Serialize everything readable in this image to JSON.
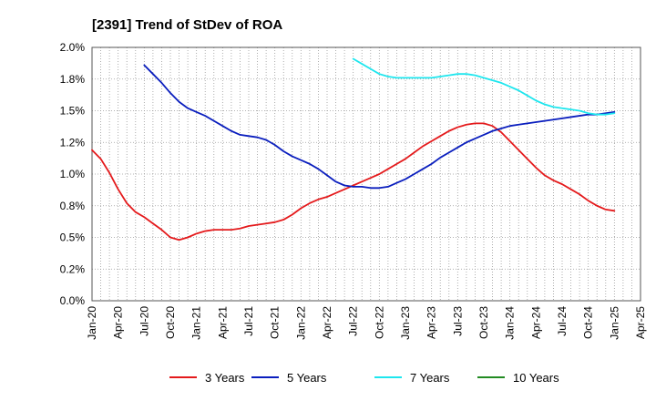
{
  "chart_data": {
    "type": "line",
    "title": "[2391]  Trend of StDev of ROA",
    "xlabel": "",
    "ylabel": "",
    "ylim": [
      0.0,
      2.0
    ],
    "y_ticks": [
      "0.0%",
      "0.2%",
      "0.5%",
      "0.8%",
      "1.0%",
      "1.2%",
      "1.5%",
      "1.8%",
      "2.0%"
    ],
    "x_ticks": [
      "Jan-20",
      "Apr-20",
      "Jul-20",
      "Oct-20",
      "Jan-21",
      "Apr-21",
      "Jul-21",
      "Oct-21",
      "Jan-22",
      "Apr-22",
      "Jul-22",
      "Oct-22",
      "Jan-23",
      "Apr-23",
      "Jul-23",
      "Oct-23",
      "Jan-24",
      "Apr-24",
      "Jul-24",
      "Oct-24",
      "Jan-25",
      "Apr-25"
    ],
    "grid": true,
    "legend_position": "bottom",
    "series": [
      {
        "name": "3 Years",
        "color": "#e41a1c",
        "points": [
          [
            "Jan-20",
            1.19
          ],
          [
            "Feb-20",
            1.12
          ],
          [
            "Mar-20",
            1.01
          ],
          [
            "Apr-20",
            0.88
          ],
          [
            "May-20",
            0.77
          ],
          [
            "Jun-20",
            0.7
          ],
          [
            "Jul-20",
            0.66
          ],
          [
            "Aug-20",
            0.61
          ],
          [
            "Sep-20",
            0.56
          ],
          [
            "Oct-20",
            0.5
          ],
          [
            "Nov-20",
            0.48
          ],
          [
            "Dec-20",
            0.5
          ],
          [
            "Jan-21",
            0.53
          ],
          [
            "Feb-21",
            0.55
          ],
          [
            "Mar-21",
            0.56
          ],
          [
            "Apr-21",
            0.56
          ],
          [
            "May-21",
            0.56
          ],
          [
            "Jun-21",
            0.57
          ],
          [
            "Jul-21",
            0.59
          ],
          [
            "Aug-21",
            0.6
          ],
          [
            "Sep-21",
            0.61
          ],
          [
            "Oct-21",
            0.62
          ],
          [
            "Nov-21",
            0.64
          ],
          [
            "Dec-21",
            0.68
          ],
          [
            "Jan-22",
            0.73
          ],
          [
            "Feb-22",
            0.77
          ],
          [
            "Mar-22",
            0.8
          ],
          [
            "Apr-22",
            0.82
          ],
          [
            "May-22",
            0.85
          ],
          [
            "Jun-22",
            0.88
          ],
          [
            "Jul-22",
            0.91
          ],
          [
            "Aug-22",
            0.94
          ],
          [
            "Sep-22",
            0.97
          ],
          [
            "Oct-22",
            1.0
          ],
          [
            "Nov-22",
            1.04
          ],
          [
            "Dec-22",
            1.08
          ],
          [
            "Jan-23",
            1.12
          ],
          [
            "Feb-23",
            1.17
          ],
          [
            "Mar-23",
            1.22
          ],
          [
            "Apr-23",
            1.26
          ],
          [
            "May-23",
            1.3
          ],
          [
            "Jun-23",
            1.34
          ],
          [
            "Jul-23",
            1.37
          ],
          [
            "Aug-23",
            1.39
          ],
          [
            "Sep-23",
            1.4
          ],
          [
            "Oct-23",
            1.4
          ],
          [
            "Nov-23",
            1.38
          ],
          [
            "Dec-23",
            1.33
          ],
          [
            "Jan-24",
            1.26
          ],
          [
            "Feb-24",
            1.19
          ],
          [
            "Mar-24",
            1.12
          ],
          [
            "Apr-24",
            1.05
          ],
          [
            "May-24",
            0.99
          ],
          [
            "Jun-24",
            0.95
          ],
          [
            "Jul-24",
            0.92
          ],
          [
            "Aug-24",
            0.88
          ],
          [
            "Sep-24",
            0.84
          ],
          [
            "Oct-24",
            0.79
          ],
          [
            "Nov-24",
            0.75
          ],
          [
            "Dec-24",
            0.72
          ],
          [
            "Jan-25",
            0.71
          ]
        ]
      },
      {
        "name": "5 Years",
        "color": "#0a1ebe",
        "points": [
          [
            "Jul-20",
            1.86
          ],
          [
            "Aug-20",
            1.79
          ],
          [
            "Sep-20",
            1.72
          ],
          [
            "Oct-20",
            1.64
          ],
          [
            "Nov-20",
            1.57
          ],
          [
            "Dec-20",
            1.52
          ],
          [
            "Jan-21",
            1.49
          ],
          [
            "Feb-21",
            1.46
          ],
          [
            "Mar-21",
            1.42
          ],
          [
            "Apr-21",
            1.38
          ],
          [
            "May-21",
            1.34
          ],
          [
            "Jun-21",
            1.31
          ],
          [
            "Jul-21",
            1.3
          ],
          [
            "Aug-21",
            1.29
          ],
          [
            "Sep-21",
            1.27
          ],
          [
            "Oct-21",
            1.23
          ],
          [
            "Nov-21",
            1.18
          ],
          [
            "Dec-21",
            1.14
          ],
          [
            "Jan-22",
            1.11
          ],
          [
            "Feb-22",
            1.08
          ],
          [
            "Mar-22",
            1.04
          ],
          [
            "Apr-22",
            0.99
          ],
          [
            "May-22",
            0.94
          ],
          [
            "Jun-22",
            0.91
          ],
          [
            "Jul-22",
            0.9
          ],
          [
            "Aug-22",
            0.9
          ],
          [
            "Sep-22",
            0.89
          ],
          [
            "Oct-22",
            0.89
          ],
          [
            "Nov-22",
            0.9
          ],
          [
            "Dec-22",
            0.93
          ],
          [
            "Jan-23",
            0.96
          ],
          [
            "Feb-23",
            1.0
          ],
          [
            "Mar-23",
            1.04
          ],
          [
            "Apr-23",
            1.08
          ],
          [
            "May-23",
            1.13
          ],
          [
            "Jun-23",
            1.17
          ],
          [
            "Jul-23",
            1.21
          ],
          [
            "Aug-23",
            1.25
          ],
          [
            "Sep-23",
            1.28
          ],
          [
            "Oct-23",
            1.31
          ],
          [
            "Nov-23",
            1.34
          ],
          [
            "Dec-23",
            1.36
          ],
          [
            "Jan-24",
            1.38
          ],
          [
            "Feb-24",
            1.39
          ],
          [
            "Mar-24",
            1.4
          ],
          [
            "Apr-24",
            1.41
          ],
          [
            "May-24",
            1.42
          ],
          [
            "Jun-24",
            1.43
          ],
          [
            "Jul-24",
            1.44
          ],
          [
            "Aug-24",
            1.45
          ],
          [
            "Sep-24",
            1.46
          ],
          [
            "Oct-24",
            1.47
          ],
          [
            "Nov-24",
            1.47
          ],
          [
            "Dec-24",
            1.48
          ],
          [
            "Jan-25",
            1.49
          ]
        ]
      },
      {
        "name": "7 Years",
        "color": "#1ee6ee",
        "points": [
          [
            "Jul-22",
            1.91
          ],
          [
            "Aug-22",
            1.87
          ],
          [
            "Sep-22",
            1.83
          ],
          [
            "Oct-22",
            1.79
          ],
          [
            "Nov-22",
            1.77
          ],
          [
            "Dec-22",
            1.76
          ],
          [
            "Jan-23",
            1.76
          ],
          [
            "Feb-23",
            1.76
          ],
          [
            "Mar-23",
            1.76
          ],
          [
            "Apr-23",
            1.76
          ],
          [
            "May-23",
            1.77
          ],
          [
            "Jun-23",
            1.78
          ],
          [
            "Jul-23",
            1.79
          ],
          [
            "Aug-23",
            1.79
          ],
          [
            "Sep-23",
            1.78
          ],
          [
            "Oct-23",
            1.76
          ],
          [
            "Nov-23",
            1.74
          ],
          [
            "Dec-23",
            1.72
          ],
          [
            "Jan-24",
            1.69
          ],
          [
            "Feb-24",
            1.66
          ],
          [
            "Mar-24",
            1.62
          ],
          [
            "Apr-24",
            1.58
          ],
          [
            "May-24",
            1.55
          ],
          [
            "Jun-24",
            1.53
          ],
          [
            "Jul-24",
            1.52
          ],
          [
            "Aug-24",
            1.51
          ],
          [
            "Sep-24",
            1.5
          ],
          [
            "Oct-24",
            1.48
          ],
          [
            "Nov-24",
            1.47
          ],
          [
            "Dec-24",
            1.47
          ],
          [
            "Jan-25",
            1.48
          ]
        ]
      },
      {
        "name": "10 Years",
        "color": "#228b22",
        "points": []
      }
    ]
  }
}
